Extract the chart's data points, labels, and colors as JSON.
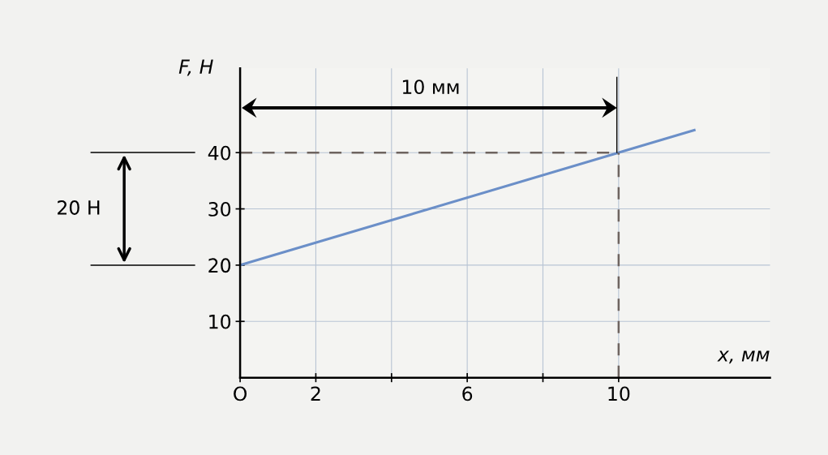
{
  "chart_data": {
    "type": "line",
    "xlabel": "x, мм",
    "ylabel": "F, Н",
    "xlim": [
      0,
      14
    ],
    "ylim": [
      0,
      55
    ],
    "xticks": [
      {
        "value": 0,
        "label": "O"
      },
      2,
      {
        "value": 4,
        "label": null
      },
      6,
      {
        "value": 8,
        "label": null
      },
      10
    ],
    "yticks": [
      10,
      20,
      30,
      40
    ],
    "grid": true,
    "series": [
      {
        "x": [
          0,
          12
        ],
        "values": [
          20,
          44
        ],
        "color": "#6b8fc8",
        "line_style": "solid"
      },
      {
        "x": [
          0,
          10
        ],
        "values": [
          40,
          40
        ],
        "color": "#6e6460",
        "line_style": "dashed"
      },
      {
        "x": [
          10,
          10
        ],
        "values": [
          0,
          40
        ],
        "color": "#6e6460",
        "line_style": "dashed"
      }
    ],
    "annotations": [
      "10 мм",
      "20 Н"
    ]
  }
}
